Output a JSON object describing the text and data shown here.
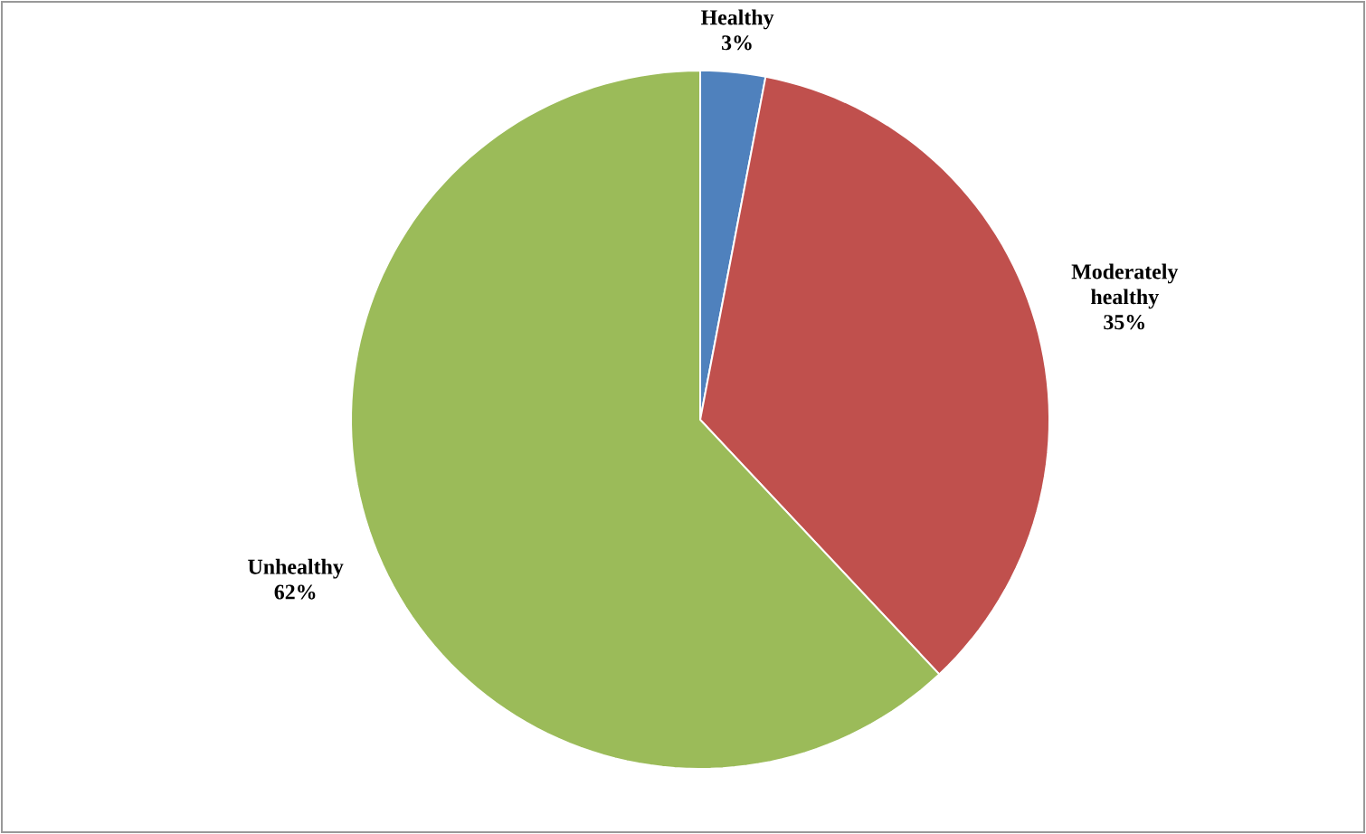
{
  "chart_data": {
    "type": "pie",
    "categories": [
      "Healthy",
      "Moderately healthy",
      "Unhealthy"
    ],
    "values": [
      3,
      35,
      62
    ],
    "value_labels": [
      "3%",
      "35%",
      "62%"
    ],
    "colors": [
      "#4f81bd",
      "#c0504d",
      "#9bbb59"
    ]
  }
}
